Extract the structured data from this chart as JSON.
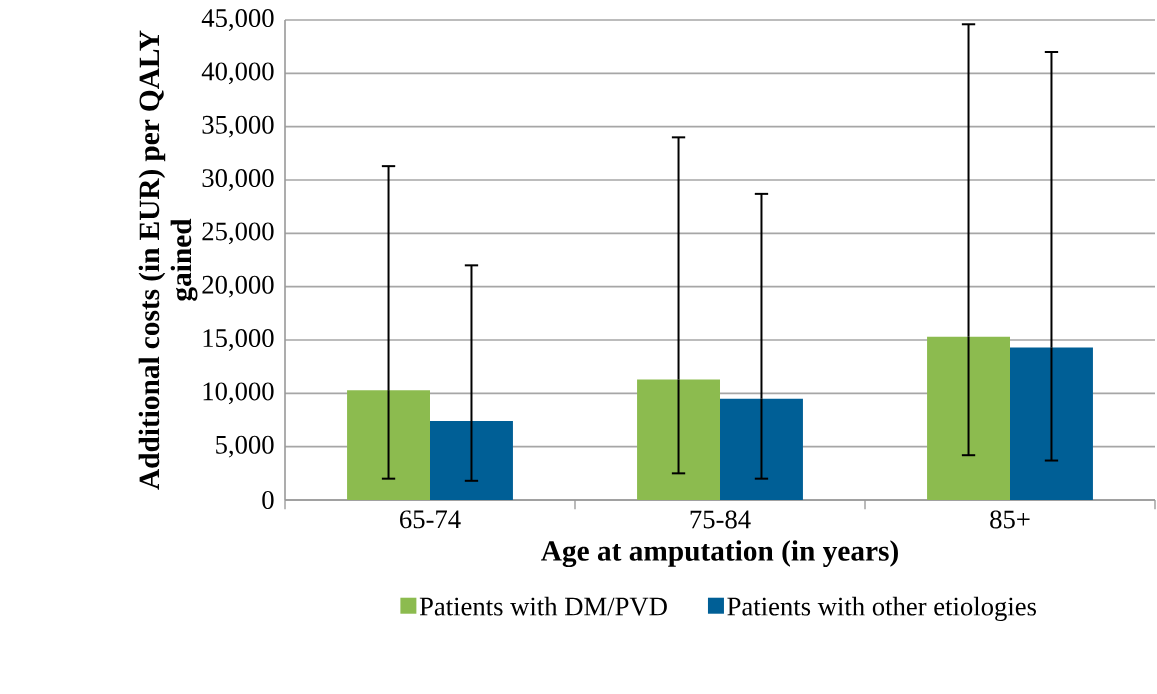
{
  "chart_data": {
    "type": "bar",
    "xlabel": "Age at amputation (in years)",
    "ylabel": "Additional costs (in EUR) per QALY gained",
    "categories": [
      "65-74",
      "75-84",
      "85+"
    ],
    "series": [
      {
        "name": "Patients with DM/PVD",
        "color": "#8cbb4f",
        "values": [
          10300,
          11300,
          15300
        ],
        "errors": [
          [
            2000,
            31300
          ],
          [
            2500,
            34000
          ],
          [
            4200,
            44600
          ]
        ]
      },
      {
        "name": "Patients with other etiologies",
        "color": "#005f96",
        "values": [
          7400,
          9500,
          14300
        ],
        "errors": [
          [
            1800,
            22000
          ],
          [
            2000,
            28700
          ],
          [
            3700,
            42000
          ]
        ]
      }
    ],
    "ylim": [
      0,
      45000
    ],
    "yticks": [
      0,
      {
        "value": 5000,
        "label": "5,000"
      },
      {
        "value": 10000,
        "label": "10,000"
      },
      {
        "value": 15000,
        "label": "15,000"
      },
      {
        "value": 20000,
        "label": "20,000"
      },
      {
        "value": 25000,
        "label": "25,000"
      },
      {
        "value": 30000,
        "label": "30,000"
      },
      {
        "value": 35000,
        "label": "35,000"
      },
      {
        "value": 40000,
        "label": "40,000"
      },
      {
        "value": 45000,
        "label": "45,000"
      }
    ],
    "grid": "y",
    "legend": "bottom"
  }
}
